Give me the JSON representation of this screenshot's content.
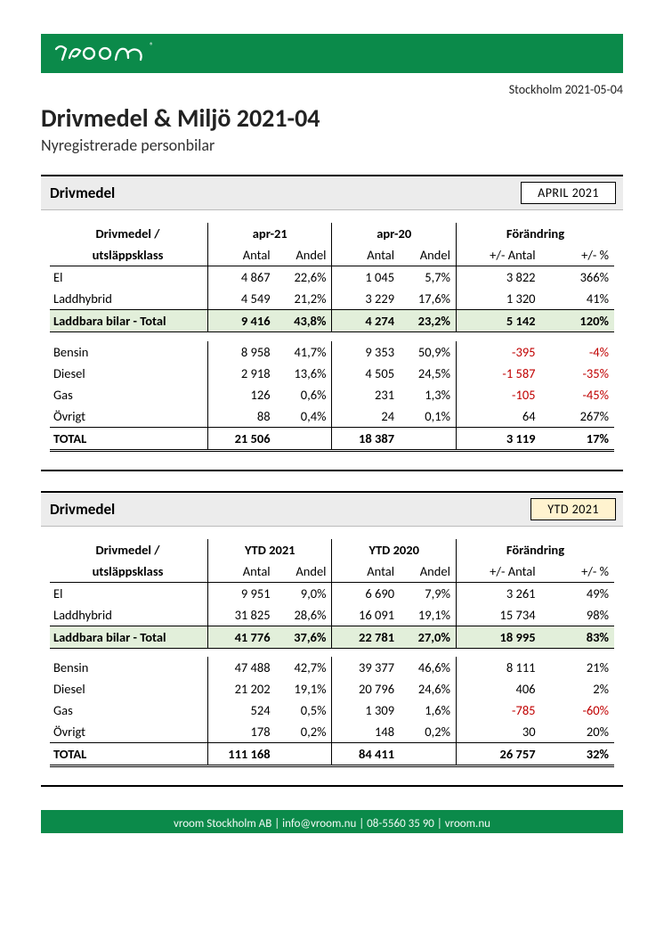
{
  "brand_color": "#0b8a4a",
  "dateline": "Stockholm 2021-05-04",
  "title": "Drivmedel & Miljö 2021-04",
  "subtitle": "Nyregistrerade personbilar",
  "footer": "vroom Stockholm AB   |   info@vroom.nu   |   08-5560 35 90   |   vroom.nu",
  "section1": {
    "title": "Drivmedel",
    "period_label": "APRIL 2021",
    "head_label_line1": "Drivmedel /",
    "head_label_line2": "utsläppsklass",
    "col_group_a": "apr-21",
    "col_group_b": "apr-20",
    "col_group_c": "Förändring",
    "sub_antal": "Antal",
    "sub_andel": "Andel",
    "sub_delta_n": "+/- Antal",
    "sub_delta_p": "+/- %",
    "rows": {
      "r0": {
        "label": "El",
        "a_n": "4 867",
        "a_p": "22,6%",
        "b_n": "1 045",
        "b_p": "5,7%",
        "d_n": "3 822",
        "d_p": "366%",
        "neg_n": false,
        "neg_p": false
      },
      "r1": {
        "label": "Laddhybrid",
        "a_n": "4 549",
        "a_p": "21,2%",
        "b_n": "3 229",
        "b_p": "17,6%",
        "d_n": "1 320",
        "d_p": "41%",
        "neg_n": false,
        "neg_p": false
      }
    },
    "subtotal": {
      "label": "Laddbara bilar - Total",
      "a_n": "9 416",
      "a_p": "43,8%",
      "b_n": "4 274",
      "b_p": "23,2%",
      "d_n": "5 142",
      "d_p": "120%"
    },
    "rows2": {
      "r0": {
        "label": "Bensin",
        "a_n": "8 958",
        "a_p": "41,7%",
        "b_n": "9 353",
        "b_p": "50,9%",
        "d_n": "-395",
        "d_p": "-4%",
        "neg_n": true,
        "neg_p": true
      },
      "r1": {
        "label": "Diesel",
        "a_n": "2 918",
        "a_p": "13,6%",
        "b_n": "4 505",
        "b_p": "24,5%",
        "d_n": "-1 587",
        "d_p": "-35%",
        "neg_n": true,
        "neg_p": true
      },
      "r2": {
        "label": "Gas",
        "a_n": "126",
        "a_p": "0,6%",
        "b_n": "231",
        "b_p": "1,3%",
        "d_n": "-105",
        "d_p": "-45%",
        "neg_n": true,
        "neg_p": true
      },
      "r3": {
        "label": "Övrigt",
        "a_n": "88",
        "a_p": "0,4%",
        "b_n": "24",
        "b_p": "0,1%",
        "d_n": "64",
        "d_p": "267%",
        "neg_n": false,
        "neg_p": false
      }
    },
    "total": {
      "label": "TOTAL",
      "a_n": "21 506",
      "a_p": "",
      "b_n": "18 387",
      "b_p": "",
      "d_n": "3 119",
      "d_p": "17%"
    }
  },
  "section2": {
    "title": "Drivmedel",
    "period_label": "YTD 2021",
    "head_label_line1": "Drivmedel /",
    "head_label_line2": "utsläppsklass",
    "col_group_a": "YTD 2021",
    "col_group_b": "YTD 2020",
    "col_group_c": "Förändring",
    "sub_antal": "Antal",
    "sub_andel": "Andel",
    "sub_delta_n": "+/- Antal",
    "sub_delta_p": "+/- %",
    "rows": {
      "r0": {
        "label": "El",
        "a_n": "9 951",
        "a_p": "9,0%",
        "b_n": "6 690",
        "b_p": "7,9%",
        "d_n": "3 261",
        "d_p": "49%",
        "neg_n": false,
        "neg_p": false
      },
      "r1": {
        "label": "Laddhybrid",
        "a_n": "31 825",
        "a_p": "28,6%",
        "b_n": "16 091",
        "b_p": "19,1%",
        "d_n": "15 734",
        "d_p": "98%",
        "neg_n": false,
        "neg_p": false
      }
    },
    "subtotal": {
      "label": "Laddbara bilar - Total",
      "a_n": "41 776",
      "a_p": "37,6%",
      "b_n": "22 781",
      "b_p": "27,0%",
      "d_n": "18 995",
      "d_p": "83%"
    },
    "rows2": {
      "r0": {
        "label": "Bensin",
        "a_n": "47 488",
        "a_p": "42,7%",
        "b_n": "39 377",
        "b_p": "46,6%",
        "d_n": "8 111",
        "d_p": "21%",
        "neg_n": false,
        "neg_p": false
      },
      "r1": {
        "label": "Diesel",
        "a_n": "21 202",
        "a_p": "19,1%",
        "b_n": "20 796",
        "b_p": "24,6%",
        "d_n": "406",
        "d_p": "2%",
        "neg_n": false,
        "neg_p": false
      },
      "r2": {
        "label": "Gas",
        "a_n": "524",
        "a_p": "0,5%",
        "b_n": "1 309",
        "b_p": "1,6%",
        "d_n": "-785",
        "d_p": "-60%",
        "neg_n": true,
        "neg_p": true
      },
      "r3": {
        "label": "Övrigt",
        "a_n": "178",
        "a_p": "0,2%",
        "b_n": "148",
        "b_p": "0,2%",
        "d_n": "30",
        "d_p": "20%",
        "neg_n": false,
        "neg_p": false
      }
    },
    "total": {
      "label": "TOTAL",
      "a_n": "111 168",
      "a_p": "",
      "b_n": "84 411",
      "b_p": "",
      "d_n": "26 757",
      "d_p": "32%"
    }
  },
  "colors": {
    "brand_green": "#0b8a4a",
    "subtotal_bg": "#e2efda",
    "header_grey": "#ececec",
    "ytd_badge_bg": "#fff3cf",
    "negative_text": "#c00000"
  }
}
